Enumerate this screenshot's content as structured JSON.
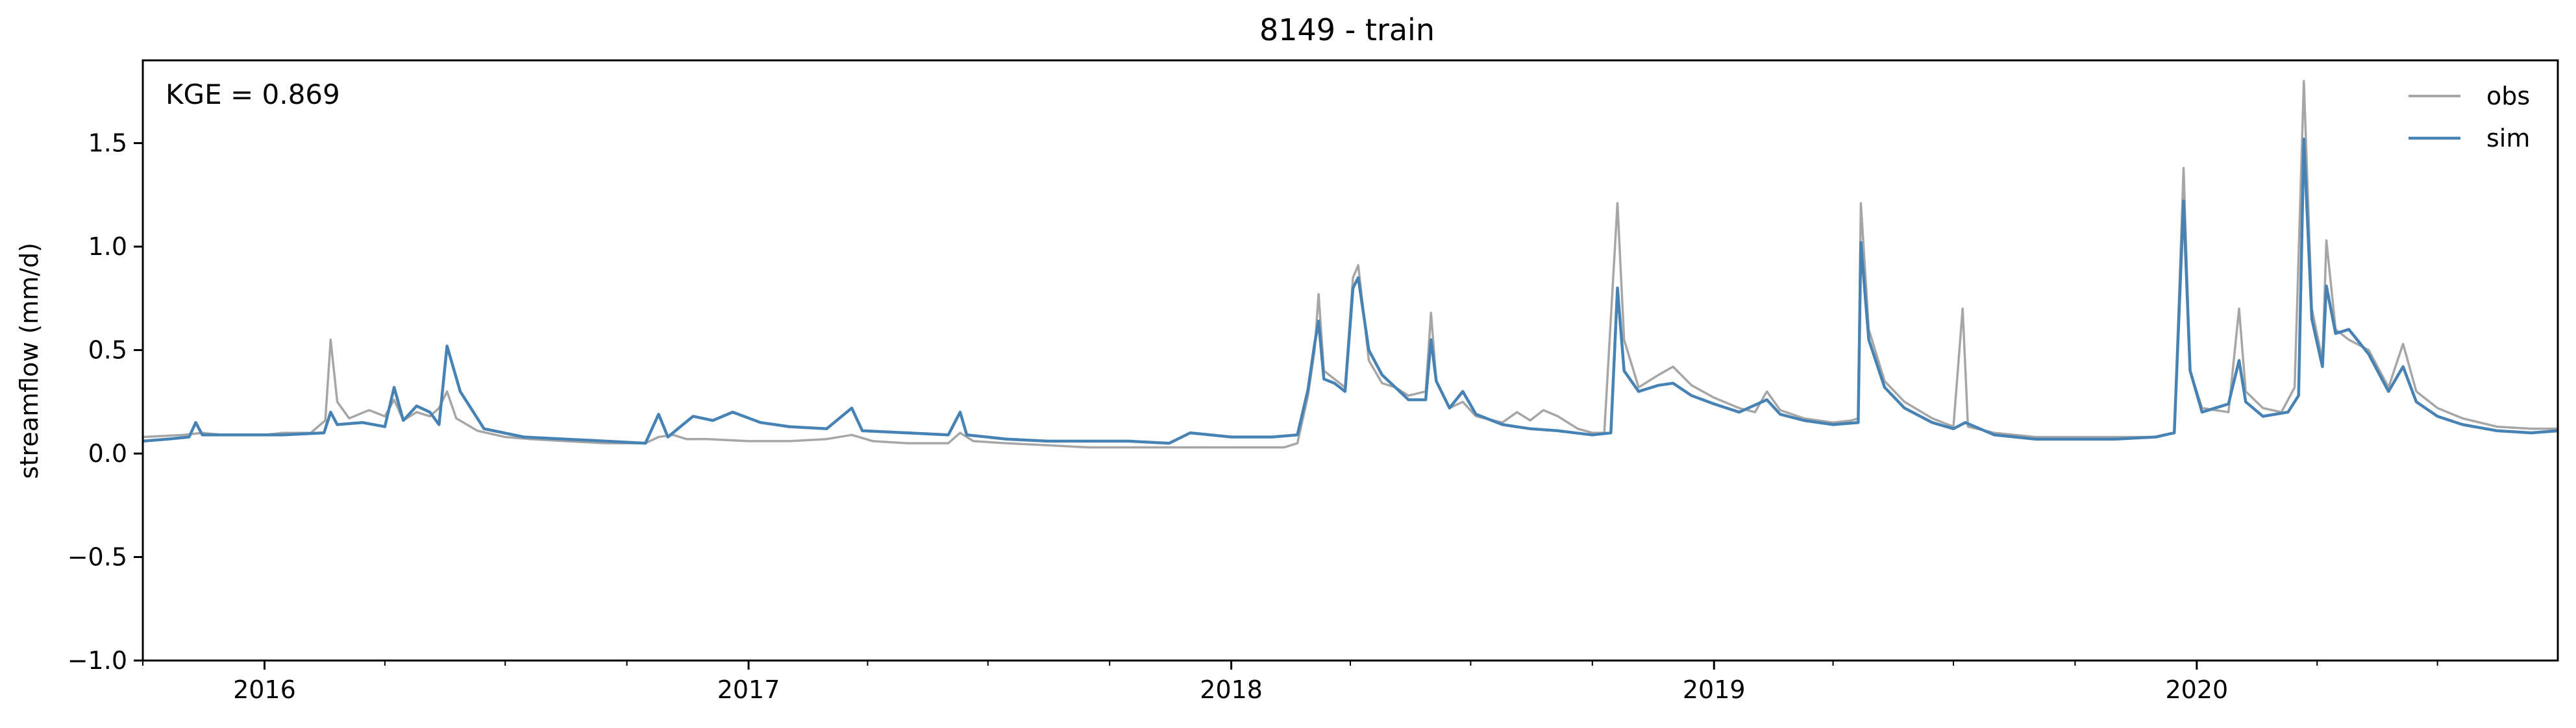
{
  "chart_data": {
    "type": "line",
    "title": "8149 - train",
    "xlabel": "",
    "ylabel": "streamflow (mm/d)",
    "annotation": "KGE = 0.869",
    "x_range": [
      "2015-10-01",
      "2020-09-30"
    ],
    "ylim": [
      -1.0,
      1.9
    ],
    "yticks": [
      -1.0,
      -0.5,
      0.0,
      0.5,
      1.0,
      1.5
    ],
    "ytick_labels": [
      "−1.0",
      "−0.5",
      "0.0",
      "0.5",
      "1.0",
      "1.5"
    ],
    "xticks": [
      {
        "date": "2016-01-01",
        "label": "2016"
      },
      {
        "date": "2017-01-01",
        "label": "2017"
      },
      {
        "date": "2018-01-01",
        "label": "2018"
      },
      {
        "date": "2019-01-01",
        "label": "2019"
      },
      {
        "date": "2020-01-01",
        "label": "2020"
      }
    ],
    "grid": false,
    "legend_position": "top-right",
    "series": [
      {
        "name": "obs",
        "color": "#a6a6a6",
        "points": [
          [
            "2015-10-01",
            0.08
          ],
          [
            "2015-11-01",
            0.09
          ],
          [
            "2015-11-15",
            0.1
          ],
          [
            "2015-12-01",
            0.09
          ],
          [
            "2016-01-01",
            0.09
          ],
          [
            "2016-01-15",
            0.1
          ],
          [
            "2016-02-05",
            0.1
          ],
          [
            "2016-02-16",
            0.16
          ],
          [
            "2016-02-20",
            0.55
          ],
          [
            "2016-02-25",
            0.25
          ],
          [
            "2016-03-05",
            0.17
          ],
          [
            "2016-03-20",
            0.21
          ],
          [
            "2016-04-01",
            0.18
          ],
          [
            "2016-04-08",
            0.26
          ],
          [
            "2016-04-15",
            0.16
          ],
          [
            "2016-04-25",
            0.2
          ],
          [
            "2016-05-05",
            0.18
          ],
          [
            "2016-05-12",
            0.22
          ],
          [
            "2016-05-18",
            0.3
          ],
          [
            "2016-05-25",
            0.17
          ],
          [
            "2016-06-10",
            0.11
          ],
          [
            "2016-07-01",
            0.08
          ],
          [
            "2016-07-20",
            0.07
          ],
          [
            "2016-08-15",
            0.06
          ],
          [
            "2016-09-15",
            0.05
          ],
          [
            "2016-10-15",
            0.05
          ],
          [
            "2016-10-25",
            0.08
          ],
          [
            "2016-11-05",
            0.09
          ],
          [
            "2016-11-15",
            0.07
          ],
          [
            "2016-12-01",
            0.07
          ],
          [
            "2017-01-01",
            0.06
          ],
          [
            "2017-02-01",
            0.06
          ],
          [
            "2017-03-01",
            0.07
          ],
          [
            "2017-03-20",
            0.09
          ],
          [
            "2017-04-05",
            0.06
          ],
          [
            "2017-05-01",
            0.05
          ],
          [
            "2017-06-01",
            0.05
          ],
          [
            "2017-06-10",
            0.1
          ],
          [
            "2017-06-20",
            0.06
          ],
          [
            "2017-07-15",
            0.05
          ],
          [
            "2017-08-15",
            0.04
          ],
          [
            "2017-09-15",
            0.03
          ],
          [
            "2017-10-15",
            0.03
          ],
          [
            "2017-11-15",
            0.03
          ],
          [
            "2017-12-15",
            0.03
          ],
          [
            "2018-01-15",
            0.03
          ],
          [
            "2018-02-10",
            0.03
          ],
          [
            "2018-02-20",
            0.05
          ],
          [
            "2018-02-28",
            0.28
          ],
          [
            "2018-03-05",
            0.5
          ],
          [
            "2018-03-08",
            0.77
          ],
          [
            "2018-03-12",
            0.4
          ],
          [
            "2018-03-20",
            0.36
          ],
          [
            "2018-03-28",
            0.32
          ],
          [
            "2018-04-03",
            0.85
          ],
          [
            "2018-04-07",
            0.91
          ],
          [
            "2018-04-15",
            0.45
          ],
          [
            "2018-04-25",
            0.34
          ],
          [
            "2018-05-05",
            0.32
          ],
          [
            "2018-05-15",
            0.28
          ],
          [
            "2018-05-28",
            0.3
          ],
          [
            "2018-06-01",
            0.68
          ],
          [
            "2018-06-05",
            0.35
          ],
          [
            "2018-06-15",
            0.22
          ],
          [
            "2018-06-25",
            0.25
          ],
          [
            "2018-07-05",
            0.18
          ],
          [
            "2018-07-25",
            0.15
          ],
          [
            "2018-08-05",
            0.2
          ],
          [
            "2018-08-15",
            0.16
          ],
          [
            "2018-08-25",
            0.21
          ],
          [
            "2018-09-05",
            0.18
          ],
          [
            "2018-09-20",
            0.12
          ],
          [
            "2018-10-01",
            0.1
          ],
          [
            "2018-10-10",
            0.1
          ],
          [
            "2018-10-20",
            1.21
          ],
          [
            "2018-10-25",
            0.55
          ],
          [
            "2018-11-05",
            0.32
          ],
          [
            "2018-11-20",
            0.38
          ],
          [
            "2018-12-01",
            0.42
          ],
          [
            "2018-12-15",
            0.33
          ],
          [
            "2019-01-01",
            0.27
          ],
          [
            "2019-01-20",
            0.22
          ],
          [
            "2019-02-01",
            0.2
          ],
          [
            "2019-02-10",
            0.3
          ],
          [
            "2019-02-20",
            0.21
          ],
          [
            "2019-03-10",
            0.17
          ],
          [
            "2019-04-01",
            0.15
          ],
          [
            "2019-04-15",
            0.16
          ],
          [
            "2019-04-20",
            0.17
          ],
          [
            "2019-04-22",
            1.21
          ],
          [
            "2019-04-28",
            0.6
          ],
          [
            "2019-05-10",
            0.35
          ],
          [
            "2019-05-25",
            0.25
          ],
          [
            "2019-06-15",
            0.17
          ],
          [
            "2019-07-01",
            0.13
          ],
          [
            "2019-07-08",
            0.7
          ],
          [
            "2019-07-12",
            0.13
          ],
          [
            "2019-08-01",
            0.1
          ],
          [
            "2019-09-01",
            0.08
          ],
          [
            "2019-10-01",
            0.08
          ],
          [
            "2019-11-01",
            0.08
          ],
          [
            "2019-12-01",
            0.08
          ],
          [
            "2019-12-15",
            0.1
          ],
          [
            "2019-12-22",
            1.38
          ],
          [
            "2019-12-27",
            0.4
          ],
          [
            "2020-01-05",
            0.22
          ],
          [
            "2020-01-25",
            0.2
          ],
          [
            "2020-02-02",
            0.7
          ],
          [
            "2020-02-07",
            0.3
          ],
          [
            "2020-02-20",
            0.22
          ],
          [
            "2020-03-05",
            0.2
          ],
          [
            "2020-03-15",
            0.32
          ],
          [
            "2020-03-22",
            1.8
          ],
          [
            "2020-03-28",
            0.7
          ],
          [
            "2020-04-05",
            0.45
          ],
          [
            "2020-04-08",
            1.03
          ],
          [
            "2020-04-15",
            0.6
          ],
          [
            "2020-04-25",
            0.55
          ],
          [
            "2020-05-10",
            0.5
          ],
          [
            "2020-05-25",
            0.32
          ],
          [
            "2020-06-05",
            0.53
          ],
          [
            "2020-06-15",
            0.3
          ],
          [
            "2020-07-01",
            0.22
          ],
          [
            "2020-07-20",
            0.17
          ],
          [
            "2020-08-15",
            0.13
          ],
          [
            "2020-09-10",
            0.12
          ],
          [
            "2020-09-30",
            0.12
          ]
        ]
      },
      {
        "name": "sim",
        "color": "#4682b4",
        "points": [
          [
            "2015-10-01",
            0.06
          ],
          [
            "2015-10-20",
            0.07
          ],
          [
            "2015-11-05",
            0.08
          ],
          [
            "2015-11-10",
            0.15
          ],
          [
            "2015-11-15",
            0.09
          ],
          [
            "2015-12-15",
            0.09
          ],
          [
            "2016-01-15",
            0.09
          ],
          [
            "2016-02-15",
            0.1
          ],
          [
            "2016-02-20",
            0.2
          ],
          [
            "2016-02-25",
            0.14
          ],
          [
            "2016-03-15",
            0.15
          ],
          [
            "2016-04-01",
            0.13
          ],
          [
            "2016-04-08",
            0.32
          ],
          [
            "2016-04-15",
            0.16
          ],
          [
            "2016-04-25",
            0.23
          ],
          [
            "2016-05-05",
            0.2
          ],
          [
            "2016-05-12",
            0.14
          ],
          [
            "2016-05-18",
            0.52
          ],
          [
            "2016-05-28",
            0.3
          ],
          [
            "2016-06-15",
            0.12
          ],
          [
            "2016-07-15",
            0.08
          ],
          [
            "2016-08-15",
            0.07
          ],
          [
            "2016-09-15",
            0.06
          ],
          [
            "2016-10-15",
            0.05
          ],
          [
            "2016-10-25",
            0.19
          ],
          [
            "2016-11-01",
            0.08
          ],
          [
            "2016-11-20",
            0.18
          ],
          [
            "2016-12-05",
            0.16
          ],
          [
            "2016-12-20",
            0.2
          ],
          [
            "2017-01-10",
            0.15
          ],
          [
            "2017-02-01",
            0.13
          ],
          [
            "2017-03-01",
            0.12
          ],
          [
            "2017-03-20",
            0.22
          ],
          [
            "2017-03-28",
            0.11
          ],
          [
            "2017-05-01",
            0.1
          ],
          [
            "2017-06-01",
            0.09
          ],
          [
            "2017-06-10",
            0.2
          ],
          [
            "2017-06-15",
            0.09
          ],
          [
            "2017-07-15",
            0.07
          ],
          [
            "2017-08-15",
            0.06
          ],
          [
            "2017-09-15",
            0.06
          ],
          [
            "2017-10-15",
            0.06
          ],
          [
            "2017-11-15",
            0.05
          ],
          [
            "2017-12-01",
            0.1
          ],
          [
            "2018-01-01",
            0.08
          ],
          [
            "2018-02-01",
            0.08
          ],
          [
            "2018-02-20",
            0.09
          ],
          [
            "2018-02-28",
            0.31
          ],
          [
            "2018-03-05",
            0.53
          ],
          [
            "2018-03-08",
            0.64
          ],
          [
            "2018-03-12",
            0.36
          ],
          [
            "2018-03-20",
            0.34
          ],
          [
            "2018-03-28",
            0.3
          ],
          [
            "2018-04-03",
            0.8
          ],
          [
            "2018-04-07",
            0.85
          ],
          [
            "2018-04-15",
            0.5
          ],
          [
            "2018-04-25",
            0.38
          ],
          [
            "2018-05-05",
            0.32
          ],
          [
            "2018-05-15",
            0.26
          ],
          [
            "2018-05-28",
            0.26
          ],
          [
            "2018-06-01",
            0.55
          ],
          [
            "2018-06-05",
            0.35
          ],
          [
            "2018-06-15",
            0.22
          ],
          [
            "2018-06-25",
            0.3
          ],
          [
            "2018-07-05",
            0.19
          ],
          [
            "2018-07-25",
            0.14
          ],
          [
            "2018-08-15",
            0.12
          ],
          [
            "2018-09-05",
            0.11
          ],
          [
            "2018-10-01",
            0.09
          ],
          [
            "2018-10-15",
            0.1
          ],
          [
            "2018-10-20",
            0.8
          ],
          [
            "2018-10-25",
            0.4
          ],
          [
            "2018-11-05",
            0.3
          ],
          [
            "2018-11-20",
            0.33
          ],
          [
            "2018-12-01",
            0.34
          ],
          [
            "2018-12-15",
            0.28
          ],
          [
            "2019-01-01",
            0.24
          ],
          [
            "2019-01-20",
            0.2
          ],
          [
            "2019-02-10",
            0.26
          ],
          [
            "2019-02-20",
            0.19
          ],
          [
            "2019-03-10",
            0.16
          ],
          [
            "2019-04-01",
            0.14
          ],
          [
            "2019-04-20",
            0.15
          ],
          [
            "2019-04-22",
            1.02
          ],
          [
            "2019-04-28",
            0.55
          ],
          [
            "2019-05-10",
            0.32
          ],
          [
            "2019-05-25",
            0.22
          ],
          [
            "2019-06-15",
            0.15
          ],
          [
            "2019-07-01",
            0.12
          ],
          [
            "2019-07-10",
            0.15
          ],
          [
            "2019-08-01",
            0.09
          ],
          [
            "2019-09-01",
            0.07
          ],
          [
            "2019-10-01",
            0.07
          ],
          [
            "2019-11-01",
            0.07
          ],
          [
            "2019-12-01",
            0.08
          ],
          [
            "2019-12-15",
            0.1
          ],
          [
            "2019-12-22",
            1.22
          ],
          [
            "2019-12-27",
            0.4
          ],
          [
            "2020-01-05",
            0.2
          ],
          [
            "2020-01-25",
            0.24
          ],
          [
            "2020-02-02",
            0.45
          ],
          [
            "2020-02-07",
            0.25
          ],
          [
            "2020-02-20",
            0.18
          ],
          [
            "2020-03-10",
            0.2
          ],
          [
            "2020-03-18",
            0.28
          ],
          [
            "2020-03-22",
            1.52
          ],
          [
            "2020-03-28",
            0.65
          ],
          [
            "2020-04-05",
            0.42
          ],
          [
            "2020-04-08",
            0.81
          ],
          [
            "2020-04-15",
            0.58
          ],
          [
            "2020-04-25",
            0.6
          ],
          [
            "2020-05-10",
            0.48
          ],
          [
            "2020-05-25",
            0.3
          ],
          [
            "2020-06-05",
            0.42
          ],
          [
            "2020-06-15",
            0.25
          ],
          [
            "2020-07-01",
            0.18
          ],
          [
            "2020-07-20",
            0.14
          ],
          [
            "2020-08-15",
            0.11
          ],
          [
            "2020-09-10",
            0.1
          ],
          [
            "2020-09-30",
            0.11
          ]
        ]
      }
    ]
  }
}
